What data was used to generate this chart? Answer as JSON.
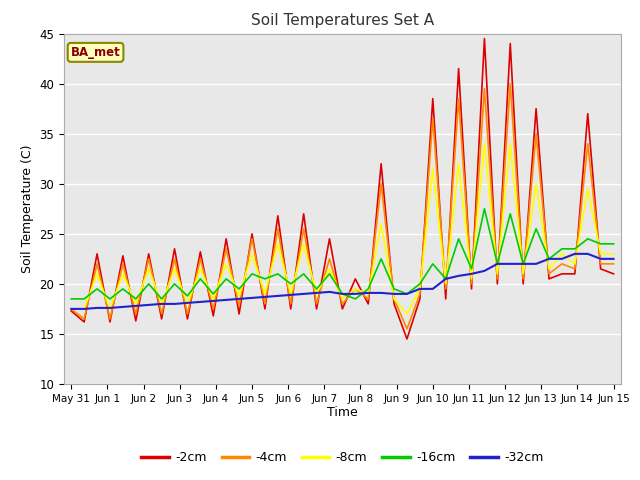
{
  "title": "Soil Temperatures Set A",
  "xlabel": "Time",
  "ylabel": "Soil Temperature (C)",
  "ylim": [
    10,
    45
  ],
  "annotation": "BA_met",
  "series": {
    "-2cm": {
      "color": "#dd0000",
      "lw": 1.2
    },
    "-4cm": {
      "color": "#ff8800",
      "lw": 1.2
    },
    "-8cm": {
      "color": "#ffff00",
      "lw": 1.2
    },
    "-16cm": {
      "color": "#00cc00",
      "lw": 1.2
    },
    "-32cm": {
      "color": "#2222cc",
      "lw": 1.5
    }
  },
  "x_tick_labels": [
    "May 31",
    "Jun 1",
    "Jun 2",
    "Jun 3",
    "Jun 4",
    "Jun 5",
    "Jun 6",
    "Jun 7",
    "Jun 8",
    "Jun 9",
    "Jun 10",
    "Jun 11",
    "Jun 12",
    "Jun 13",
    "Jun 14",
    "Jun 15"
  ],
  "data_2cm": [
    17.3,
    16.2,
    23.0,
    16.2,
    22.8,
    16.3,
    23.0,
    16.5,
    23.5,
    16.5,
    23.2,
    16.8,
    24.5,
    17.0,
    25.0,
    17.5,
    26.8,
    17.5,
    27.0,
    17.5,
    24.5,
    17.5,
    20.5,
    18.0,
    32.0,
    18.0,
    14.5,
    18.5,
    38.5,
    18.5,
    41.5,
    19.5,
    44.5,
    20.0,
    44.0,
    20.0,
    37.5,
    20.5,
    21.0,
    21.0,
    37.0,
    21.5,
    21.0
  ],
  "data_4cm": [
    17.5,
    16.5,
    22.0,
    16.5,
    22.0,
    17.0,
    22.5,
    17.0,
    22.5,
    17.0,
    22.5,
    17.5,
    23.5,
    17.8,
    24.5,
    18.0,
    25.5,
    18.0,
    25.5,
    18.0,
    22.5,
    18.0,
    19.5,
    18.5,
    30.0,
    18.5,
    15.5,
    19.0,
    36.5,
    19.5,
    38.5,
    20.0,
    39.5,
    20.5,
    40.0,
    20.5,
    35.0,
    21.0,
    22.0,
    21.5,
    34.0,
    22.0,
    22.0
  ],
  "data_8cm": [
    17.5,
    17.5,
    21.0,
    17.5,
    21.0,
    18.0,
    21.5,
    18.0,
    21.5,
    18.0,
    21.5,
    18.5,
    22.0,
    18.8,
    23.0,
    19.0,
    24.0,
    19.0,
    24.0,
    19.0,
    21.5,
    18.5,
    19.5,
    19.0,
    26.0,
    18.5,
    17.0,
    19.5,
    31.5,
    20.0,
    32.0,
    20.5,
    34.0,
    21.0,
    34.0,
    21.0,
    30.0,
    21.5,
    23.0,
    22.0,
    29.5,
    23.0,
    23.0
  ],
  "data_16cm": [
    18.5,
    18.5,
    19.5,
    18.5,
    19.5,
    18.5,
    20.0,
    18.5,
    20.0,
    18.8,
    20.5,
    19.0,
    20.5,
    19.5,
    21.0,
    20.5,
    21.0,
    20.0,
    21.0,
    19.5,
    21.0,
    19.0,
    18.5,
    19.5,
    22.5,
    19.5,
    19.0,
    20.0,
    22.0,
    20.5,
    24.5,
    21.5,
    27.5,
    22.0,
    27.0,
    22.0,
    25.5,
    22.5,
    23.5,
    23.5,
    24.5,
    24.0,
    24.0
  ],
  "data_32cm": [
    17.5,
    17.5,
    17.6,
    17.6,
    17.7,
    17.8,
    17.9,
    18.0,
    18.0,
    18.1,
    18.2,
    18.3,
    18.4,
    18.5,
    18.6,
    18.7,
    18.8,
    18.9,
    19.0,
    19.1,
    19.2,
    19.0,
    19.0,
    19.1,
    19.1,
    19.0,
    19.0,
    19.5,
    19.5,
    20.5,
    20.8,
    21.0,
    21.3,
    22.0,
    22.0,
    22.0,
    22.0,
    22.5,
    22.5,
    23.0,
    23.0,
    22.5,
    22.5
  ]
}
